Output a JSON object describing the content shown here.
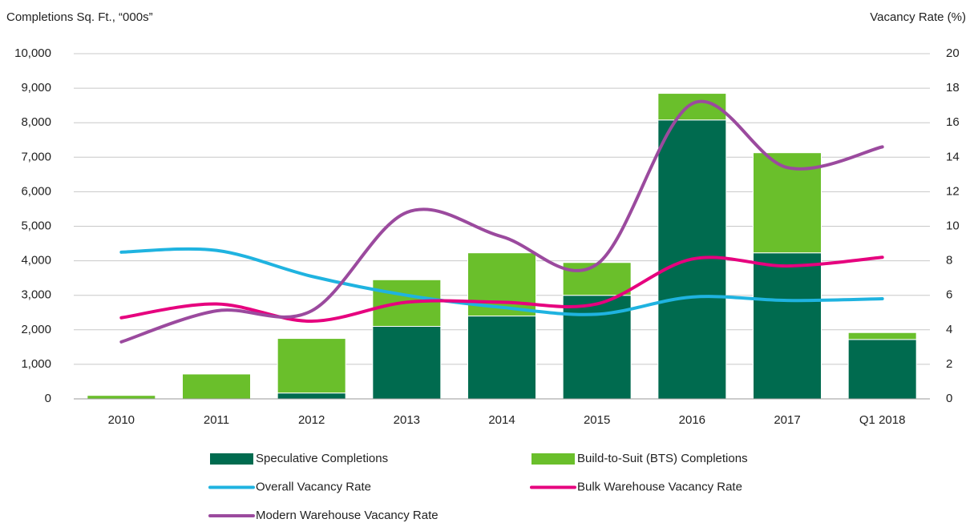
{
  "chart_data": {
    "type": "bar",
    "y_label": "Completions Sq. Ft., “000s”",
    "y2_label": "Vacancy Rate (%)",
    "categories": [
      "2010",
      "2011",
      "2012",
      "2013",
      "2014",
      "2015",
      "2016",
      "2017",
      "Q1 2018"
    ],
    "series": [
      {
        "name": "Speculative Completions",
        "type": "bar",
        "color": "#006b4f",
        "values": [
          0,
          0,
          170,
          2100,
          2400,
          3000,
          8080,
          4230,
          1720
        ]
      },
      {
        "name": "Build-to-Suit (BTS) Completions",
        "type": "bar",
        "color": "#6abf2b",
        "values": [
          100,
          720,
          1580,
          1350,
          1830,
          950,
          770,
          2900,
          200
        ]
      },
      {
        "name": "Overall Vacancy Rate",
        "type": "line",
        "axis": "y2",
        "color": "#1fb3e0",
        "values": [
          8.5,
          8.6,
          7.1,
          6.0,
          5.3,
          4.9,
          5.9,
          5.7,
          5.8
        ]
      },
      {
        "name": "Bulk Warehouse Vacancy Rate",
        "type": "line",
        "axis": "y2",
        "color": "#e6007e",
        "values": [
          4.7,
          5.5,
          4.5,
          5.6,
          5.6,
          5.5,
          8.1,
          7.7,
          8.2
        ]
      },
      {
        "name": "Modern Warehouse Vacancy Rate",
        "type": "line",
        "axis": "y2",
        "color": "#9b4a9e",
        "values": [
          3.3,
          5.1,
          5.1,
          10.8,
          9.4,
          7.8,
          17.1,
          13.4,
          14.6
        ]
      }
    ],
    "ylim": [
      0,
      10000
    ],
    "yticks": [
      0,
      {
        "value": 1000,
        "label": "1,000"
      },
      {
        "value": 2000,
        "label": "2,000"
      },
      {
        "value": 3000,
        "label": "3,000"
      },
      {
        "value": 4000,
        "label": "4,000"
      },
      {
        "value": 5000,
        "label": "5,000"
      },
      {
        "value": 6000,
        "label": "6,000"
      },
      {
        "value": 7000,
        "label": "7,000"
      },
      {
        "value": 8000,
        "label": "8,000"
      },
      {
        "value": 9000,
        "label": "9,000"
      },
      {
        "value": 10000,
        "label": "10,000"
      }
    ],
    "y2lim": [
      0,
      20
    ],
    "y2ticks": [
      0,
      2,
      4,
      6,
      8,
      10,
      12,
      14,
      16,
      18,
      20
    ],
    "grid": true
  }
}
